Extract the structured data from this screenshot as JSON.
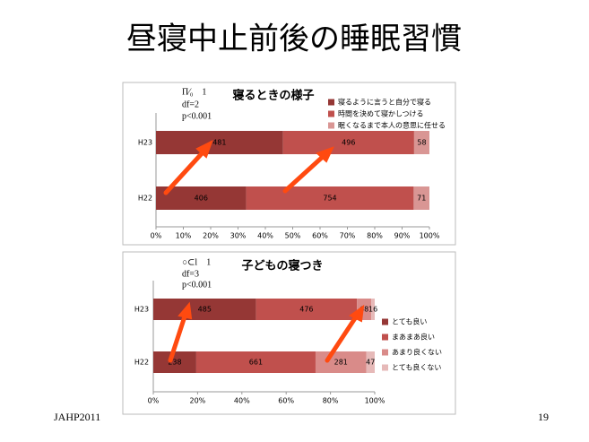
{
  "title": "昼寝中止前後の睡眠習慣",
  "footer_left": "JAHP2011",
  "page_number": "19",
  "chart_data": [
    {
      "type": "bar",
      "stacking": "percent",
      "orientation": "horizontal",
      "title": "寝るときの様子",
      "annotations": [
        "Π⁄₀　1",
        "df=2",
        "p<0.001"
      ],
      "categories": [
        "H23",
        "H22"
      ],
      "series": [
        {
          "name": "寝るように言うと自分で寝る",
          "color": "#953735",
          "values": [
            481,
            406
          ]
        },
        {
          "name": "時間を決めて寝かしつける",
          "color": "#c0504d",
          "values": [
            496,
            754
          ]
        },
        {
          "name": "眠くなるまで本人の意思に任せる",
          "color": "#d99694",
          "values": [
            58,
            71
          ]
        }
      ],
      "xlim": [
        0,
        100
      ],
      "xticks": [
        {
          "value": 0,
          "label": "0%"
        },
        {
          "value": 10,
          "label": "10%"
        },
        {
          "value": 20,
          "label": "20%"
        },
        {
          "value": 30,
          "label": "30%"
        },
        {
          "value": 40,
          "label": "40%"
        },
        {
          "value": 50,
          "label": "50%"
        },
        {
          "value": 60,
          "label": "60%"
        },
        {
          "value": 70,
          "label": "70%"
        },
        {
          "value": 80,
          "label": "80%"
        },
        {
          "value": 90,
          "label": "90%"
        },
        {
          "value": 100,
          "label": "100%"
        }
      ],
      "legend": "top-right"
    },
    {
      "type": "bar",
      "stacking": "percent",
      "orientation": "horizontal",
      "title": "子どもの寝つき",
      "annotations": [
        "○⊂l　1",
        "df=3",
        "p<0.001"
      ],
      "categories": [
        "H23",
        "H22"
      ],
      "series": [
        {
          "name": "とても良い",
          "color": "#953735",
          "values": [
            485,
            238
          ]
        },
        {
          "name": "まあまあ良い",
          "color": "#c0504d",
          "values": [
            476,
            661
          ]
        },
        {
          "name": "あまり良くない",
          "color": "#d98b89",
          "values": [
            68,
            281
          ]
        },
        {
          "name": "とても良くない",
          "color": "#e6b9b8",
          "values": [
            16,
            47
          ]
        }
      ],
      "xlim": [
        0,
        100
      ],
      "xticks": [
        {
          "value": 0,
          "label": "0%"
        },
        {
          "value": 20,
          "label": "20%"
        },
        {
          "value": 40,
          "label": "40%"
        },
        {
          "value": 60,
          "label": "60%"
        },
        {
          "value": 80,
          "label": "80%"
        },
        {
          "value": 100,
          "label": "100%"
        }
      ],
      "legend": "right"
    }
  ]
}
